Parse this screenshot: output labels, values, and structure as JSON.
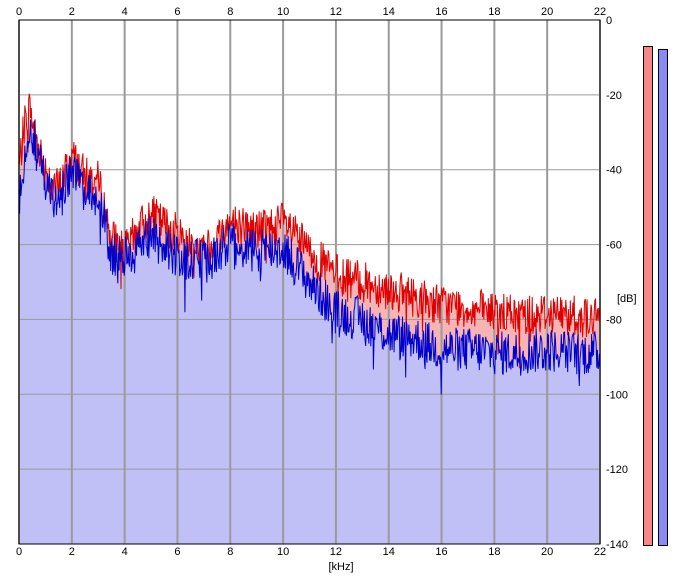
{
  "chart_data": {
    "type": "area",
    "title": "",
    "xlabel": "[kHz]",
    "ylabel": "[dB]",
    "xlim": [
      0,
      22
    ],
    "ylim": [
      -140,
      0
    ],
    "x_ticks": [
      "0",
      "2",
      "4",
      "6",
      "8",
      "10",
      "12",
      "14",
      "16",
      "18",
      "20",
      "22"
    ],
    "y_ticks": [
      "0",
      "-20",
      "-40",
      "-60",
      "-80",
      "-100",
      "-120",
      "-140"
    ],
    "grid": true,
    "colors": {
      "channel_a_line": "#e00000",
      "channel_a_fill": "#f7b4b4",
      "channel_b_line": "#0000cc",
      "channel_b_fill": "#c0c0f7"
    },
    "series": [
      {
        "x": [
          0,
          0.2,
          0.4,
          0.6,
          0.8,
          1.0,
          1.5,
          2.0,
          2.5,
          3.0,
          3.5,
          4.0,
          4.5,
          5.0,
          6.0,
          7.0,
          8.0,
          9.0,
          10.0,
          11.0,
          12.0,
          13.0,
          14.0,
          15.0,
          16.0,
          17.0,
          18.0,
          19.0,
          20.0,
          21.0,
          22.0
        ],
        "values": [
          -40,
          -28,
          -23,
          -30,
          -35,
          -40,
          -45,
          -36,
          -42,
          -43,
          -58,
          -62,
          -56,
          -52,
          -57,
          -62,
          -54,
          -56,
          -54,
          -62,
          -68,
          -70,
          -72,
          -74,
          -76,
          -77,
          -78,
          -79,
          -78,
          -79,
          -80
        ]
      },
      {
        "x": [
          0,
          0.2,
          0.4,
          0.6,
          0.8,
          1.0,
          1.5,
          2.0,
          2.5,
          3.0,
          3.5,
          4.0,
          4.5,
          5.0,
          6.0,
          7.0,
          8.0,
          9.0,
          10.0,
          11.0,
          12.0,
          13.0,
          14.0,
          15.0,
          16.0,
          17.0,
          18.0,
          19.0,
          20.0,
          21.0,
          22.0
        ],
        "values": [
          -50,
          -34,
          -27,
          -33,
          -38,
          -44,
          -49,
          -40,
          -47,
          -46,
          -63,
          -63,
          -60,
          -58,
          -63,
          -65,
          -60,
          -62,
          -61,
          -70,
          -78,
          -80,
          -84,
          -85,
          -88,
          -88,
          -89,
          -89,
          -88,
          -89,
          -89
        ]
      }
    ],
    "level_meters": [
      {
        "level_db": -1
      },
      {
        "level_db": -2
      }
    ]
  }
}
